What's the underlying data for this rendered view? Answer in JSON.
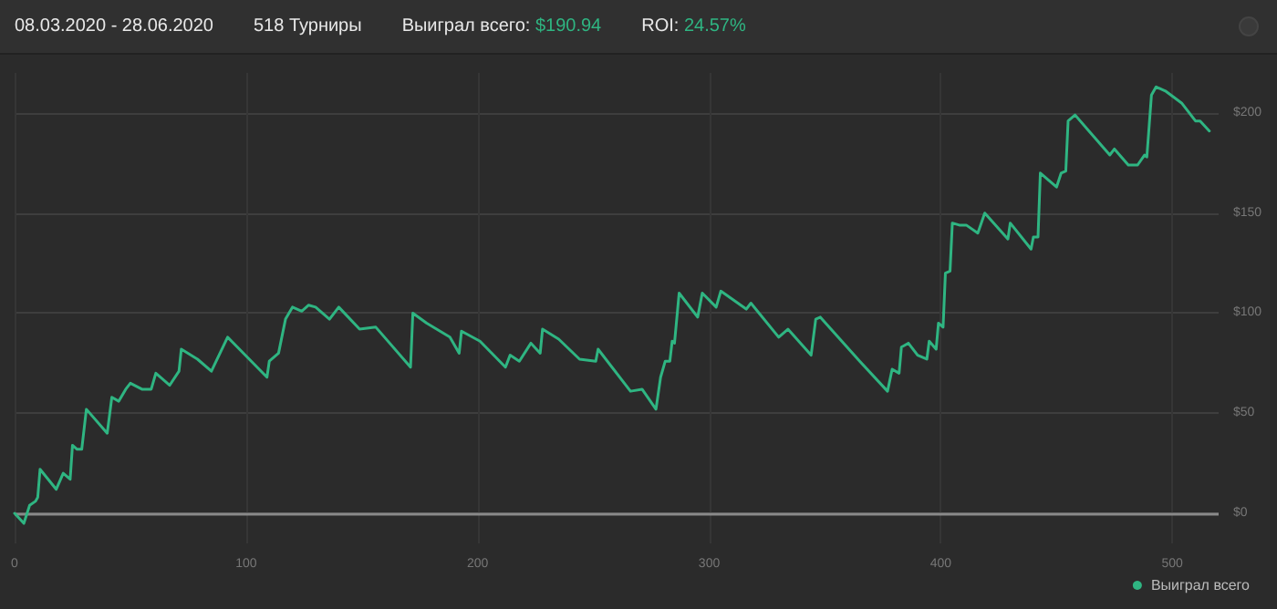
{
  "chart_data": {
    "type": "line",
    "title": "08.03.2020 - 28.06.2020",
    "annotations": [
      "518 Турниры",
      "Выиграл всего: $190.94",
      "ROI: 24.57%"
    ],
    "x": [
      0,
      4,
      6.5,
      9,
      10,
      11,
      18,
      21,
      24,
      25,
      27,
      29,
      31,
      40,
      42,
      45,
      48,
      50,
      55,
      59,
      61,
      67,
      71,
      72,
      79,
      85,
      92,
      109,
      110,
      114,
      117,
      120,
      124,
      127,
      130,
      136,
      140,
      149,
      156,
      171,
      172,
      178,
      188,
      192,
      193,
      201,
      212,
      214,
      218,
      223,
      227,
      228,
      235,
      244,
      251,
      252,
      266,
      271,
      277,
      279,
      281,
      283,
      284,
      285,
      287,
      295,
      297,
      303,
      305,
      316,
      318,
      330,
      334,
      344,
      346,
      348,
      365,
      377,
      379,
      382,
      383,
      386,
      390,
      394,
      395,
      398,
      399,
      401,
      402,
      404,
      405,
      408,
      411,
      416,
      419,
      429,
      430,
      439,
      440,
      442,
      443,
      450,
      452,
      454,
      455,
      458,
      464,
      473,
      475,
      481,
      485,
      488,
      489,
      491,
      493,
      497,
      504,
      510,
      512,
      516
    ],
    "series": [
      {
        "name": "Выиграл всего",
        "color": "#2fb582",
        "values": [
          0,
          -5,
          4,
          6,
          8,
          22,
          12,
          20,
          17,
          34,
          32,
          32,
          52,
          40,
          58,
          56,
          62,
          65,
          62,
          62,
          70,
          64,
          71,
          82,
          77,
          71,
          88,
          68,
          76,
          80,
          97,
          103,
          101,
          104,
          103,
          97,
          103,
          92,
          93,
          73,
          100,
          95,
          88,
          80,
          91,
          86,
          73,
          79,
          76,
          85,
          80,
          92,
          87,
          77,
          76,
          82,
          61,
          62,
          52,
          68,
          76,
          76,
          86,
          85,
          110,
          98,
          110,
          103,
          111,
          102,
          105,
          88,
          92,
          79,
          97,
          98,
          76,
          61,
          72,
          70,
          83,
          85,
          79,
          77,
          86,
          82,
          95,
          93,
          120,
          121,
          145,
          144,
          144,
          140,
          150,
          137,
          145,
          132,
          138,
          138,
          170,
          163,
          170,
          171,
          196,
          199,
          191,
          179,
          182,
          174,
          174,
          179,
          178,
          209,
          213,
          211,
          205,
          196,
          196,
          191
        ]
      }
    ],
    "xlim": [
      0,
      520
    ],
    "xticks": [
      0,
      100,
      200,
      300,
      400,
      500
    ],
    "ylim": [
      -15,
      220
    ],
    "yticks": [
      {
        "value": 0,
        "label": "$0"
      },
      {
        "value": 50,
        "label": "$50"
      },
      {
        "value": 100,
        "label": "$100"
      },
      {
        "value": 150,
        "label": "$150"
      },
      {
        "value": 200,
        "label": "$200"
      }
    ],
    "ref_lines": [
      {
        "axis": "y",
        "value": 0,
        "color": "#8a8a8a"
      }
    ],
    "grid": true,
    "legend": "bottom right",
    "marker": "none",
    "line_style": "solid"
  }
}
